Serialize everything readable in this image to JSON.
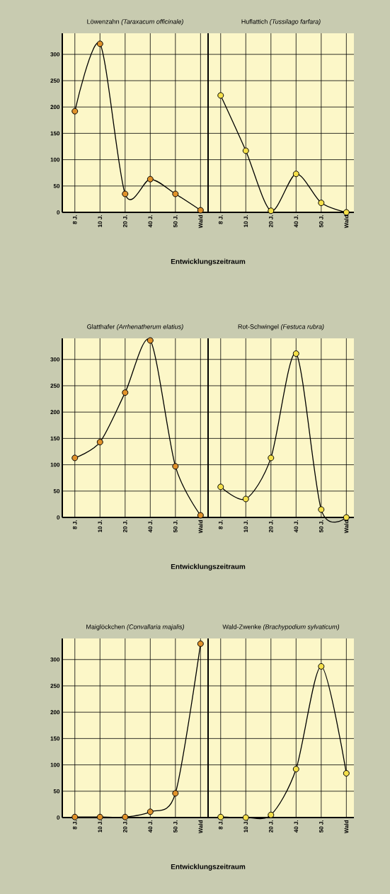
{
  "chart_data": [
    {
      "type": "line",
      "title": "Löwenzahn *(Taraxacum officinale)*",
      "categories": [
        "8 J.",
        "10 J.",
        "20 J.",
        "40 J.",
        "50 J.",
        "Wald"
      ],
      "values": [
        192,
        320,
        35,
        63,
        35,
        4
      ],
      "color": "#e0922a",
      "ylim": [
        0,
        340
      ],
      "yticks": [
        0,
        50,
        100,
        150,
        200,
        250,
        300
      ],
      "grid": true,
      "marker": "circle",
      "xlabel": "Entwicklungszeitraum"
    },
    {
      "type": "line",
      "title": "Huflattich *(Tussilago farfara)*",
      "categories": [
        "8 J.",
        "10 J.",
        "20 J.",
        "40 J.",
        "50 J.",
        "Wald"
      ],
      "values": [
        222,
        117,
        3,
        73,
        18,
        0
      ],
      "color": "#f5e04a",
      "ylim": [
        0,
        340
      ],
      "yticks": [
        0,
        50,
        100,
        150,
        200,
        250,
        300
      ],
      "grid": true,
      "marker": "circle",
      "tick_labels": "x"
    },
    {
      "type": "line",
      "title": "Glatthafer *(Arrhenatherum elatius)*",
      "categories": [
        "8 J.",
        "10 J.",
        "20 J.",
        "40 J.",
        "50 J.",
        "Wald"
      ],
      "values": [
        113,
        143,
        237,
        336,
        97,
        4
      ],
      "color": "#e0922a",
      "ylim": [
        0,
        340
      ],
      "yticks": [
        0,
        50,
        100,
        150,
        200,
        250,
        300
      ],
      "grid": true,
      "marker": "circle",
      "xlabel": "Entwicklungszeitraum"
    },
    {
      "type": "line",
      "title": "Rot-Schwingel *(Festuca rubra)*",
      "categories": [
        "8 J.",
        "10 J.",
        "20 J.",
        "40 J.",
        "50 J.",
        "Wald"
      ],
      "values": [
        58,
        35,
        113,
        311,
        15,
        0
      ],
      "color": "#f5e04a",
      "ylim": [
        0,
        340
      ],
      "yticks": [
        0,
        50,
        100,
        150,
        200,
        250,
        300
      ],
      "grid": true,
      "marker": "circle",
      "tick_labels": "x"
    },
    {
      "type": "line",
      "title": "Maiglöckchen *(Convallaria majalis)*",
      "categories": [
        "8 J.",
        "10 J.",
        "20 J.",
        "40 J.",
        "50 J.",
        "Wald"
      ],
      "values": [
        1,
        1,
        1,
        11,
        46,
        330
      ],
      "color": "#e0922a",
      "ylim": [
        0,
        340
      ],
      "yticks": [
        0,
        50,
        100,
        150,
        200,
        250,
        300
      ],
      "grid": true,
      "marker": "circle",
      "xlabel": "Entwicklungszeitraum"
    },
    {
      "type": "line",
      "title": "Wald-Zwenke *(Brachypodium sylvaticum)*",
      "categories": [
        "8 J.",
        "10 J.",
        "20 J.",
        "40 J.",
        "50 J.",
        "Wald"
      ],
      "values": [
        1,
        0,
        5,
        92,
        287,
        84
      ],
      "color": "#f5e04a",
      "ylim": [
        0,
        340
      ],
      "yticks": [
        0,
        50,
        100,
        150,
        200,
        250,
        300
      ],
      "grid": true,
      "marker": "circle",
      "tick_labels": "x"
    }
  ]
}
